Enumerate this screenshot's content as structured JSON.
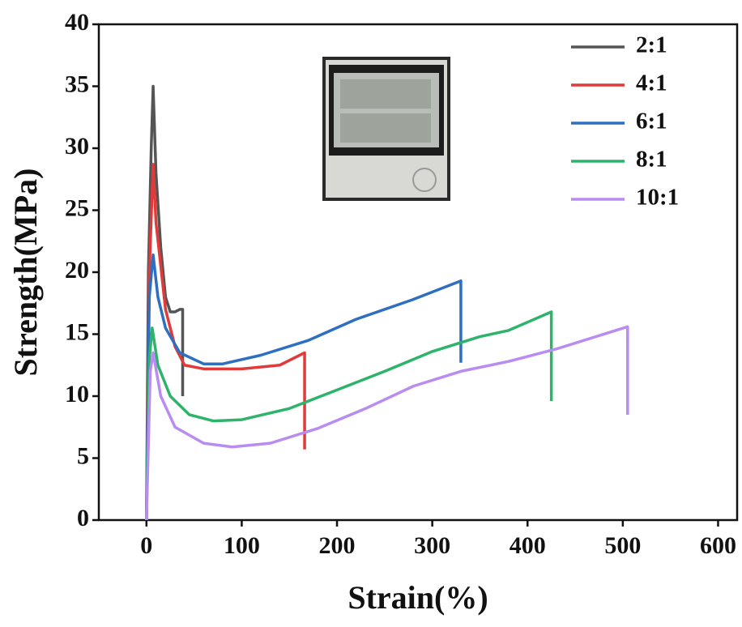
{
  "chart_data": {
    "type": "line",
    "x_label": "Strain(%)",
    "y_label": "Strength(MPa)",
    "xlim": [
      -50,
      620
    ],
    "ylim": [
      0,
      40
    ],
    "xticks": [
      0,
      100,
      200,
      300,
      400,
      500,
      600
    ],
    "yticks": [
      0,
      5,
      10,
      15,
      20,
      25,
      30,
      35,
      40
    ],
    "legend": "top-right",
    "series": [
      {
        "name": "2:1",
        "color": "#555555",
        "x": [
          0,
          2,
          5,
          7,
          10,
          15,
          20,
          25,
          30,
          35,
          38,
          38
        ],
        "values": [
          0,
          20,
          30,
          35,
          28,
          22,
          18,
          16.8,
          16.8,
          17,
          17,
          10
        ]
      },
      {
        "name": "4:1",
        "color": "#e03a3a",
        "x": [
          0,
          3,
          7,
          10,
          20,
          30,
          40,
          60,
          100,
          140,
          166,
          166
        ],
        "values": [
          0,
          20,
          28.7,
          24,
          17,
          14,
          12.5,
          12.2,
          12.2,
          12.5,
          13.5,
          5.7
        ]
      },
      {
        "name": "6:1",
        "color": "#2f6fc0",
        "x": [
          0,
          3,
          7,
          12,
          20,
          35,
          60,
          80,
          120,
          170,
          220,
          280,
          330,
          330
        ],
        "values": [
          0,
          18,
          21.4,
          18,
          15.5,
          13.5,
          12.6,
          12.6,
          13.3,
          14.5,
          16.2,
          17.8,
          19.3,
          12.7
        ]
      },
      {
        "name": "8:1",
        "color": "#2db36a",
        "x": [
          0,
          3,
          6,
          12,
          25,
          45,
          70,
          100,
          150,
          200,
          250,
          300,
          350,
          380,
          425,
          425
        ],
        "values": [
          0,
          13,
          15.5,
          12.5,
          10,
          8.5,
          8,
          8.1,
          9,
          10.5,
          12,
          13.6,
          14.8,
          15.3,
          16.8,
          9.6
        ]
      },
      {
        "name": "10:1",
        "color": "#b88cf0",
        "x": [
          0,
          4,
          7,
          15,
          30,
          60,
          90,
          130,
          180,
          230,
          280,
          330,
          380,
          430,
          505,
          505
        ],
        "values": [
          0,
          12,
          13.5,
          10,
          7.5,
          6.2,
          5.9,
          6.2,
          7.4,
          9,
          10.8,
          12,
          12.8,
          13.8,
          15.6,
          8.5
        ]
      }
    ]
  }
}
